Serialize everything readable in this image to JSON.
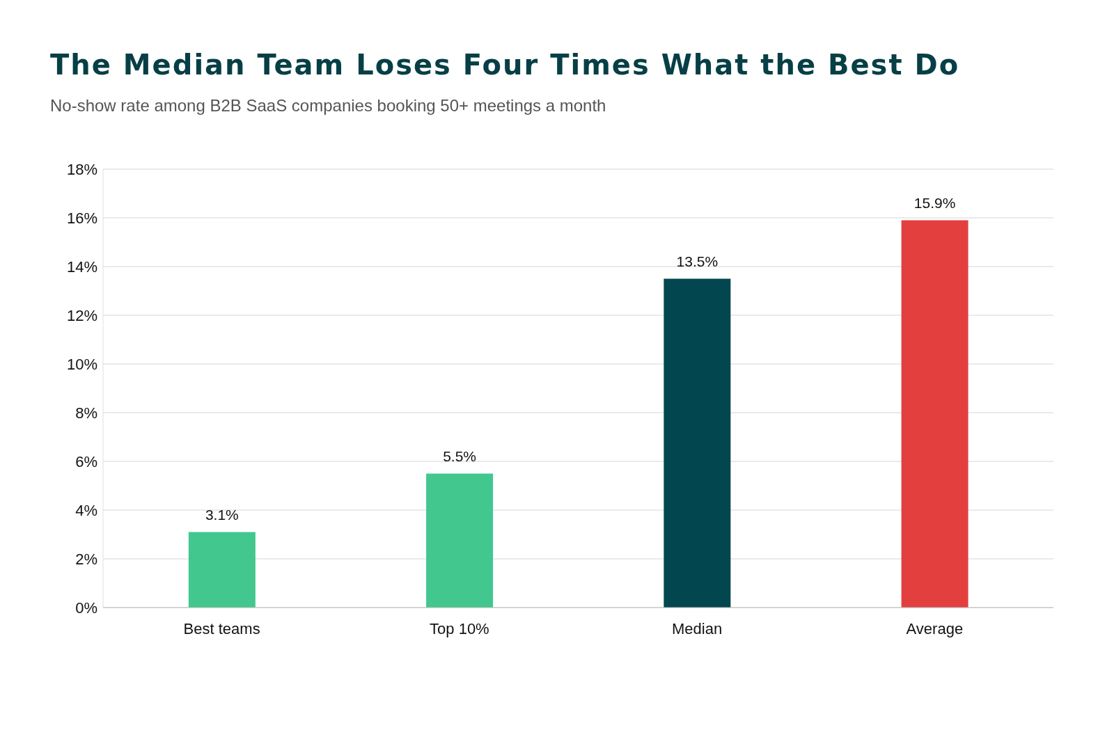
{
  "chart_data": {
    "type": "bar",
    "title": "The Median Team Loses Four Times What the Best Do",
    "subtitle": "No-show rate among B2B SaaS companies booking 50+ meetings a month",
    "categories": [
      "Best teams",
      "Top 10%",
      "Median",
      "Average"
    ],
    "values": [
      3.1,
      5.5,
      13.5,
      15.9
    ],
    "colors": [
      "#42c78f",
      "#42c78f",
      "#02474f",
      "#e43f3f"
    ],
    "ylim": [
      0,
      18
    ],
    "yticks": [
      {
        "value": 0,
        "label": "0%"
      },
      {
        "value": 2,
        "label": "2%"
      },
      {
        "value": 4,
        "label": "4%"
      },
      {
        "value": 6,
        "label": "6%"
      },
      {
        "value": 8,
        "label": "8%"
      },
      {
        "value": 10,
        "label": "10%"
      },
      {
        "value": 12,
        "label": "12%"
      },
      {
        "value": 14,
        "label": "14%"
      },
      {
        "value": 16,
        "label": "16%"
      },
      {
        "value": 18,
        "label": "18%"
      }
    ],
    "value_labels": [
      "3.1%",
      "5.5%",
      "13.5%",
      "15.9%"
    ],
    "grid": "y"
  }
}
